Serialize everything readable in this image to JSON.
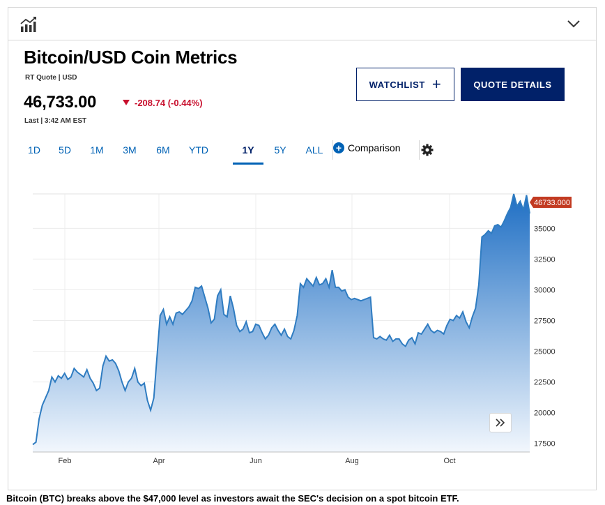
{
  "header": {
    "chart_icon": "bar-chart-trend-icon",
    "collapse_icon": "chevron-down-icon"
  },
  "quote": {
    "title": "Bitcoin/USD Coin Metrics",
    "subtitle": "RT Quote | USD",
    "price": "46,733.00",
    "change": "-208.74 (-0.44%)",
    "last": "Last | 3:42 AM EST"
  },
  "buttons": {
    "watchlist": "WATCHLIST",
    "quote_details": "QUOTE DETAILS"
  },
  "tabs": [
    "1D",
    "5D",
    "1M",
    "3M",
    "6M",
    "YTD",
    "1Y",
    "5Y",
    "ALL"
  ],
  "active_tab": "1Y",
  "comparison_label": "Comparison",
  "colors": {
    "brand_navy": "#012169",
    "link_blue": "#0062b5",
    "down_red": "#c8102e",
    "line": "#2f7cc1"
  },
  "chart_data": {
    "type": "area",
    "x_labels": [
      "Feb",
      "Apr",
      "Jun",
      "Aug",
      "Oct"
    ],
    "y_ticks": [
      17500,
      20000,
      22500,
      25000,
      27500,
      30000,
      32500,
      35000
    ],
    "ylim": [
      16800,
      37800
    ],
    "last_value_label": "46733.000",
    "grid": true,
    "series": [
      {
        "values": [
          17400,
          17600,
          19500,
          20600,
          21200,
          21800,
          22900,
          22500,
          23000,
          22800,
          23200,
          22700,
          22900,
          23600,
          23300,
          23100,
          22900,
          23500,
          22800,
          22400,
          21800,
          22000,
          23800,
          24600,
          24200,
          24300,
          24000,
          23400,
          22500,
          21800,
          22500,
          22800,
          23600,
          22500,
          22200,
          22400,
          21000,
          20200,
          21200,
          24600,
          27900,
          28400,
          27200,
          27800,
          27200,
          28100,
          28200,
          28000,
          28300,
          28600,
          29100,
          30200,
          30100,
          30300,
          29400,
          28500,
          27300,
          27600,
          29500,
          30000,
          28000,
          27800,
          29500,
          28500,
          27100,
          26600,
          26800,
          27400,
          26500,
          26600,
          27200,
          27100,
          26500,
          26000,
          26300,
          26900,
          27200,
          26700,
          26300,
          26800,
          26200,
          26000,
          26700,
          27900,
          30500,
          30200,
          30900,
          30600,
          30300,
          31000,
          30400,
          30500,
          30900,
          30200,
          31600,
          30200,
          30200,
          29900,
          30000,
          29400,
          29200,
          29300,
          29200,
          29100,
          29200,
          29300,
          29400,
          26100,
          26000,
          26200,
          26000,
          25900,
          26300,
          25800,
          26000,
          26000,
          25600,
          25400,
          25900,
          26100,
          25600,
          26500,
          26400,
          26800,
          27200,
          26700,
          26500,
          26700,
          26600,
          26400,
          27100,
          27600,
          27500,
          27900,
          27700,
          28200,
          27400,
          26900,
          27800,
          28500,
          30400,
          34300,
          34500,
          34800,
          34600,
          35200,
          35300,
          35100,
          35600,
          36200,
          36700,
          37800,
          36800,
          37200,
          36500,
          37700,
          36200
        ]
      }
    ]
  },
  "expand_icon": "double-chevron-right-icon",
  "caption": "Bitcoin (BTC) breaks above the $47,000 level as investors await the SEC's decision on a spot bitcoin ETF."
}
